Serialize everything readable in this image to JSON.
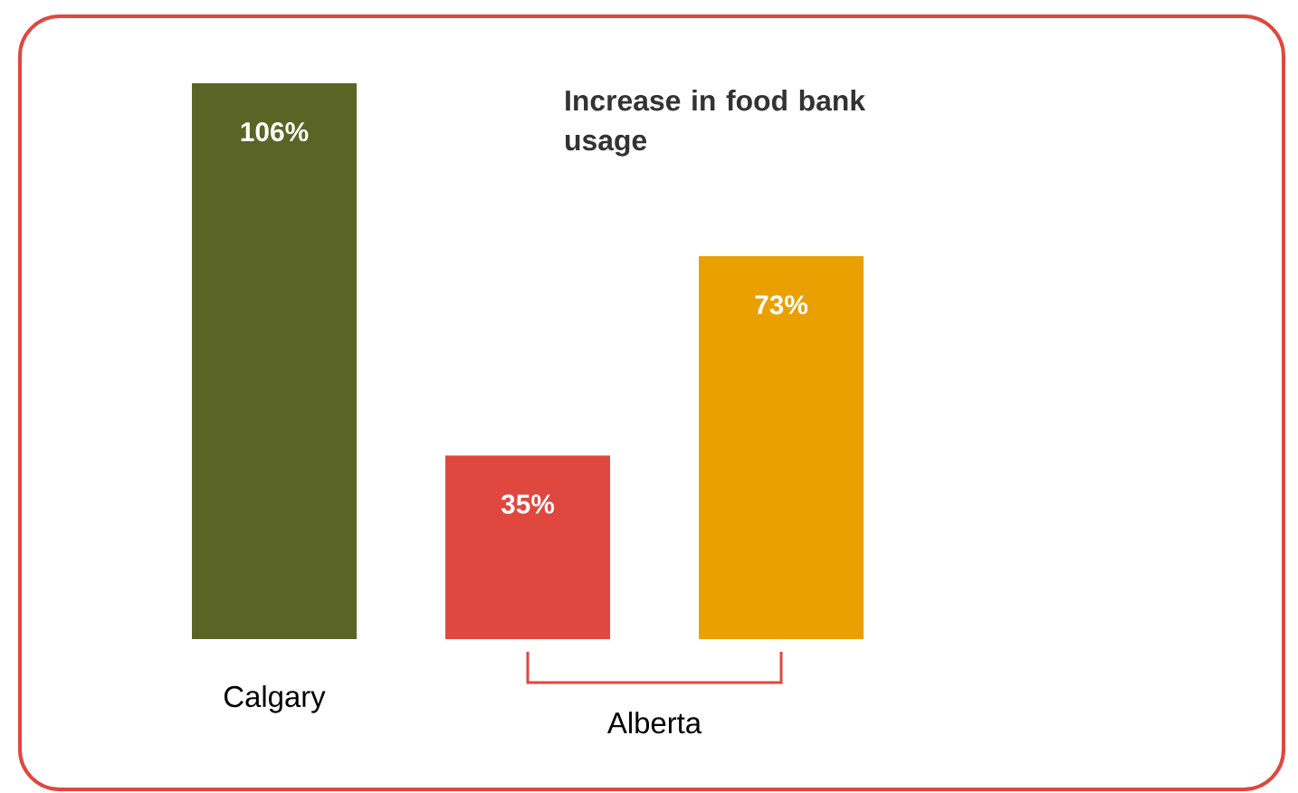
{
  "chart_data": {
    "type": "bar",
    "title": "Increase in food bank usage",
    "categories": [
      "Calgary",
      null,
      null
    ],
    "values": [
      106,
      35,
      73
    ],
    "colors": [
      "#5a6424",
      "#e0473e",
      "#e9a000"
    ],
    "value_labels": [
      "106%",
      "35%",
      "73%"
    ],
    "annotations": [
      "Alberta"
    ]
  }
}
